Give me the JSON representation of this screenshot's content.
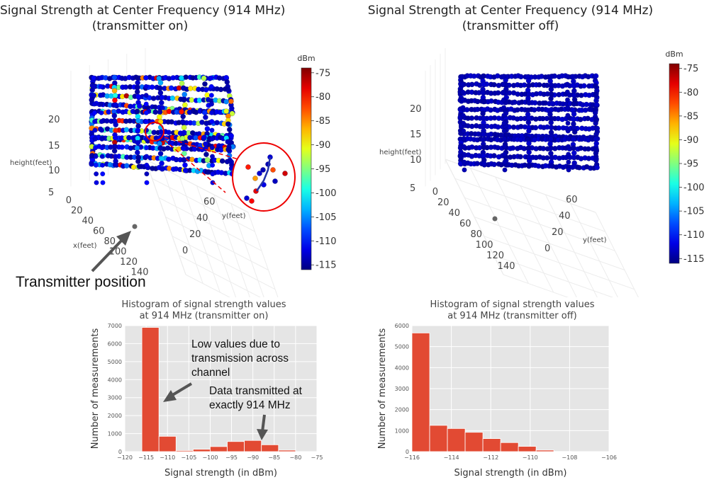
{
  "chart_data": [
    {
      "type": "scatter3d",
      "title_lines": [
        "Signal Strength at Center Frequency (914 MHz)",
        "(transmitter on)"
      ],
      "x_axis": {
        "label": "x(feet)",
        "ticks": [
          "0",
          "20",
          "40",
          "60",
          "80",
          "100",
          "120",
          "140"
        ]
      },
      "y_axis": {
        "label": "y(feet)",
        "ticks": [
          "0",
          "20",
          "40",
          "60"
        ]
      },
      "z_axis": {
        "label": "height(feet)",
        "ticks": [
          "5",
          "10",
          "15",
          "20"
        ]
      },
      "colorbar": {
        "title": "dBm",
        "ticks": [
          -75,
          -80,
          -85,
          -90,
          -95,
          -100,
          -105,
          -110,
          -115
        ],
        "range": [
          -116,
          -74
        ]
      },
      "floors_height_feet": [
        5,
        12,
        20
      ],
      "annotation": "Transmitter position"
    },
    {
      "type": "scatter3d",
      "title_lines": [
        "Signal Strength at Center Frequency (914 MHz)",
        "(transmitter off)"
      ],
      "x_axis": {
        "label": "",
        "ticks": [
          "0",
          "20",
          "40",
          "60",
          "80",
          "100",
          "120",
          "140"
        ]
      },
      "y_axis": {
        "label": "y(feet)",
        "ticks": [
          "0",
          "20",
          "40",
          "60"
        ]
      },
      "z_axis": {
        "label": "height(feet)",
        "ticks": [
          "5",
          "10",
          "15",
          "20"
        ]
      },
      "colorbar": {
        "title": "dBm",
        "ticks": [
          -75,
          -80,
          -85,
          -90,
          -95,
          -100,
          -105,
          -110,
          -115
        ],
        "range": [
          -116,
          -74
        ]
      },
      "floors_height_feet": [
        5,
        12,
        20
      ]
    },
    {
      "type": "bar",
      "title_lines": [
        "Histogram of signal strength values",
        "at 914 MHz (transmitter on)"
      ],
      "xlabel": "Signal strength (in dBm)",
      "ylabel": "Number of measurements",
      "xlim": [
        -120,
        -75
      ],
      "ylim": [
        0,
        7000
      ],
      "xticks": [
        -120,
        -115,
        -110,
        -105,
        -100,
        -95,
        -90,
        -85,
        -80,
        -75
      ],
      "yticks": [
        0,
        1000,
        2000,
        3000,
        4000,
        5000,
        6000,
        7000
      ],
      "bins": [
        {
          "x0": -116,
          "x1": -112,
          "count": 6900
        },
        {
          "x0": -112,
          "x1": -108,
          "count": 850
        },
        {
          "x0": -108,
          "x1": -104,
          "count": 60
        },
        {
          "x0": -104,
          "x1": -100,
          "count": 130
        },
        {
          "x0": -100,
          "x1": -96,
          "count": 280
        },
        {
          "x0": -96,
          "x1": -92,
          "count": 560
        },
        {
          "x0": -92,
          "x1": -88,
          "count": 620
        },
        {
          "x0": -88,
          "x1": -84,
          "count": 380
        },
        {
          "x0": -84,
          "x1": -80,
          "count": 80
        }
      ],
      "bar_color": "#e24a33",
      "annotations": [
        {
          "lines": [
            "Low values due to",
            "transmission across",
            "channel"
          ]
        },
        {
          "lines": [
            "Data transmitted at",
            "exactly 914 MHz"
          ]
        }
      ]
    },
    {
      "type": "bar",
      "title_lines": [
        "Histogram of signal strength values",
        "at 914 MHz (transmitter off)"
      ],
      "xlabel": "Signal strength (in dBm)",
      "ylabel": "Number of measurements",
      "xlim": [
        -116,
        -106
      ],
      "ylim": [
        0,
        6000
      ],
      "xticks": [
        -116,
        -114,
        -112,
        -110,
        -108,
        -106
      ],
      "yticks": [
        0,
        1000,
        2000,
        3000,
        4000,
        5000,
        6000
      ],
      "bins": [
        {
          "x0": -116,
          "x1": -115.1,
          "count": 5650
        },
        {
          "x0": -115.1,
          "x1": -114.2,
          "count": 1250
        },
        {
          "x0": -114.2,
          "x1": -113.3,
          "count": 1100
        },
        {
          "x0": -113.3,
          "x1": -112.4,
          "count": 920
        },
        {
          "x0": -112.4,
          "x1": -111.5,
          "count": 620
        },
        {
          "x0": -111.5,
          "x1": -110.6,
          "count": 430
        },
        {
          "x0": -110.6,
          "x1": -109.7,
          "count": 250
        },
        {
          "x0": -109.7,
          "x1": -108.8,
          "count": 70
        },
        {
          "x0": -108.8,
          "x1": -107.9,
          "count": 8
        },
        {
          "x0": -107.9,
          "x1": -107.0,
          "count": 4
        }
      ],
      "bar_color": "#e24a33"
    }
  ]
}
